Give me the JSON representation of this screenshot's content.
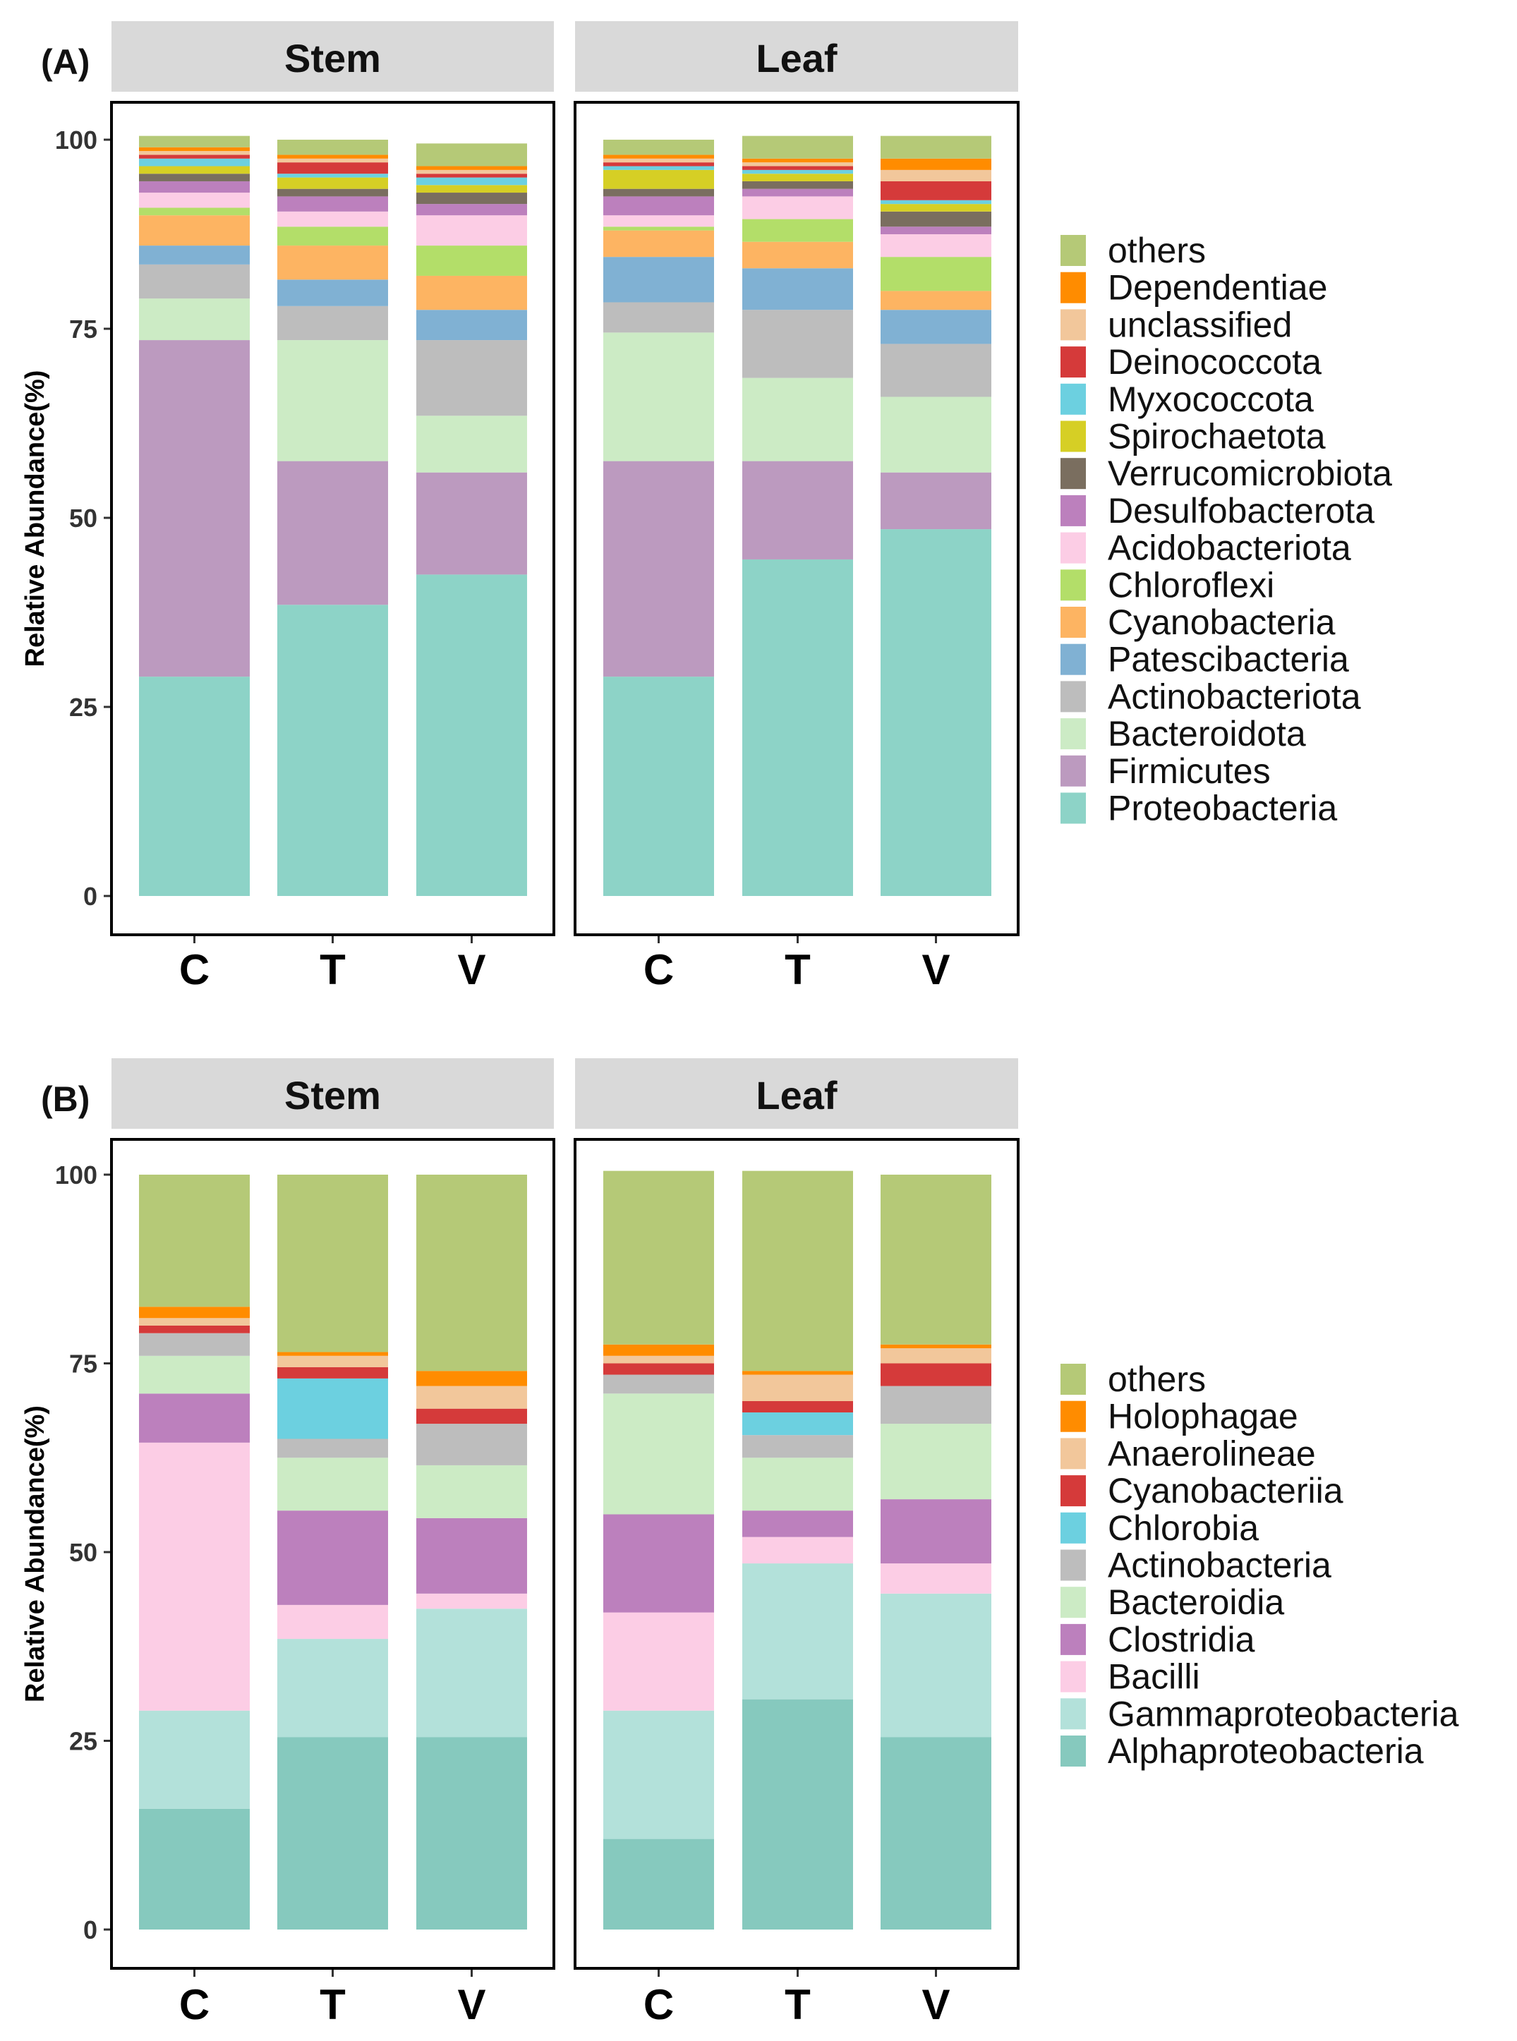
{
  "chart_data": [
    {
      "type": "bar",
      "stacked": true,
      "panel_label": "(A)",
      "ylabel": "Relative Abundance(%)",
      "ylim": [
        0,
        100
      ],
      "yticks": [
        0,
        25,
        50,
        75,
        100
      ],
      "categories": [
        "C",
        "T",
        "V"
      ],
      "facets": [
        "Stem",
        "Leaf"
      ],
      "legend_position": "right",
      "series": [
        {
          "name": "Proteobacteria",
          "color": "#8DD3C7",
          "values": {
            "Stem": [
              29,
              38.5,
              42.5
            ],
            "Leaf": [
              29,
              44.5,
              48.5
            ]
          }
        },
        {
          "name": "Firmicutes",
          "color": "#BC9ABF",
          "values": {
            "Stem": [
              44.5,
              19,
              13.5
            ],
            "Leaf": [
              28.5,
              13,
              7.5
            ]
          }
        },
        {
          "name": "Bacteroidota",
          "color": "#CCEBC5",
          "values": {
            "Stem": [
              5.5,
              16,
              7.5
            ],
            "Leaf": [
              17,
              11,
              10
            ]
          }
        },
        {
          "name": "Actinobacteriota",
          "color": "#BDBDBD",
          "values": {
            "Stem": [
              4.5,
              4.5,
              10
            ],
            "Leaf": [
              4,
              9,
              7
            ]
          }
        },
        {
          "name": "Patescibacteria",
          "color": "#80B1D3",
          "values": {
            "Stem": [
              2.5,
              3.5,
              4
            ],
            "Leaf": [
              6,
              5.5,
              4.5
            ]
          }
        },
        {
          "name": "Cyanobacteria",
          "color": "#FDB462",
          "values": {
            "Stem": [
              4,
              4.5,
              4.5
            ],
            "Leaf": [
              3.5,
              3.5,
              2.5
            ]
          }
        },
        {
          "name": "Chloroflexi",
          "color": "#B3DE69",
          "values": {
            "Stem": [
              1,
              2.5,
              4
            ],
            "Leaf": [
              0.5,
              3,
              4.5
            ]
          }
        },
        {
          "name": "Acidobacteriota",
          "color": "#FCCDE5",
          "values": {
            "Stem": [
              2,
              2,
              4
            ],
            "Leaf": [
              1.5,
              3,
              3
            ]
          }
        },
        {
          "name": "Desulfobacterota",
          "color": "#BC80BD",
          "values": {
            "Stem": [
              1.5,
              2,
              1.5
            ],
            "Leaf": [
              2.5,
              1,
              1
            ]
          }
        },
        {
          "name": "Verrucomicrobiota",
          "color": "#7A6E5F",
          "values": {
            "Stem": [
              1,
              1,
              1.5
            ],
            "Leaf": [
              1,
              1,
              2
            ]
          }
        },
        {
          "name": "Spirochaetota",
          "color": "#D6CF25",
          "values": {
            "Stem": [
              1,
              1.5,
              1
            ],
            "Leaf": [
              2.5,
              1,
              1
            ]
          }
        },
        {
          "name": "Myxococcota",
          "color": "#6CD0E0",
          "values": {
            "Stem": [
              1,
              0.5,
              1
            ],
            "Leaf": [
              0.5,
              0.5,
              0.5
            ]
          }
        },
        {
          "name": "Deinococcota",
          "color": "#D53A3A",
          "values": {
            "Stem": [
              0.5,
              1.5,
              0.5
            ],
            "Leaf": [
              0.5,
              0.5,
              2.5
            ]
          }
        },
        {
          "name": "unclassified",
          "color": "#F2C79B",
          "values": {
            "Stem": [
              0.5,
              0.5,
              0.5
            ],
            "Leaf": [
              0.5,
              0.5,
              1.5
            ]
          }
        },
        {
          "name": "Dependentiae",
          "color": "#FF8C00",
          "values": {
            "Stem": [
              0.5,
              0.5,
              0.5
            ],
            "Leaf": [
              0.5,
              0.5,
              1.5
            ]
          }
        },
        {
          "name": "others",
          "color": "#B5C977",
          "values": {
            "Stem": [
              1.5,
              2,
              3
            ],
            "Leaf": [
              2,
              3,
              3
            ]
          }
        }
      ]
    },
    {
      "type": "bar",
      "stacked": true,
      "panel_label": "(B)",
      "ylabel": "Relative Abundance(%)",
      "ylim": [
        0,
        100
      ],
      "yticks": [
        0,
        25,
        50,
        75,
        100
      ],
      "categories": [
        "C",
        "T",
        "V"
      ],
      "facets": [
        "Stem",
        "Leaf"
      ],
      "legend_position": "right",
      "series": [
        {
          "name": "Alphaproteobacteria",
          "color": "#86C9BE",
          "values": {
            "Stem": [
              16,
              25.5,
              25.5
            ],
            "Leaf": [
              12,
              30.5,
              25.5
            ]
          }
        },
        {
          "name": "Gammaproteobacteria",
          "color": "#B3E1DA",
          "values": {
            "Stem": [
              13,
              13,
              17
            ],
            "Leaf": [
              17,
              18,
              19
            ]
          }
        },
        {
          "name": "Bacilli",
          "color": "#FCCDE5",
          "values": {
            "Stem": [
              35.5,
              4.5,
              2
            ],
            "Leaf": [
              13,
              3.5,
              4
            ]
          }
        },
        {
          "name": "Clostridia",
          "color": "#BC80BD",
          "values": {
            "Stem": [
              6.5,
              12.5,
              10
            ],
            "Leaf": [
              13,
              3.5,
              8.5
            ]
          }
        },
        {
          "name": "Bacteroidia",
          "color": "#CCEBC5",
          "values": {
            "Stem": [
              5,
              7,
              7
            ],
            "Leaf": [
              16,
              7,
              10
            ]
          }
        },
        {
          "name": "Actinobacteria",
          "color": "#BDBDBD",
          "values": {
            "Stem": [
              3,
              2.5,
              5.5
            ],
            "Leaf": [
              2.5,
              3,
              5
            ]
          }
        },
        {
          "name": "Chlorobia",
          "color": "#6CD0E0",
          "values": {
            "Stem": [
              0,
              8,
              0
            ],
            "Leaf": [
              0,
              3,
              0
            ]
          }
        },
        {
          "name": "Cyanobacteriia",
          "color": "#D53A3A",
          "values": {
            "Stem": [
              1,
              1.5,
              2
            ],
            "Leaf": [
              1.5,
              1.5,
              3
            ]
          }
        },
        {
          "name": "Anaerolineae",
          "color": "#F2C79B",
          "values": {
            "Stem": [
              1,
              1.5,
              3
            ],
            "Leaf": [
              1,
              3.5,
              2
            ]
          }
        },
        {
          "name": "Holophagae",
          "color": "#FF8C00",
          "values": {
            "Stem": [
              1.5,
              0.5,
              2
            ],
            "Leaf": [
              1.5,
              0.5,
              0.5
            ]
          }
        },
        {
          "name": "others",
          "color": "#B5C977",
          "values": {
            "Stem": [
              17.5,
              23.5,
              26
            ],
            "Leaf": [
              23,
              26.5,
              22.5
            ]
          }
        }
      ]
    }
  ]
}
